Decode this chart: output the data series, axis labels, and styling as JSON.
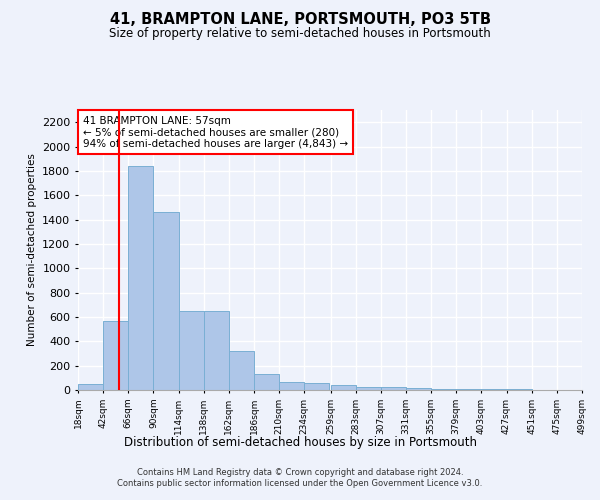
{
  "title": "41, BRAMPTON LANE, PORTSMOUTH, PO3 5TB",
  "subtitle": "Size of property relative to semi-detached houses in Portsmouth",
  "xlabel": "Distribution of semi-detached houses by size in Portsmouth",
  "ylabel": "Number of semi-detached properties",
  "footer_line1": "Contains HM Land Registry data © Crown copyright and database right 2024.",
  "footer_line2": "Contains public sector information licensed under the Open Government Licence v3.0.",
  "annotation_title": "41 BRAMPTON LANE: 57sqm",
  "annotation_line2": "← 5% of semi-detached houses are smaller (280)",
  "annotation_line3": "94% of semi-detached houses are larger (4,843) →",
  "bar_color": "#aec6e8",
  "bar_edge_color": "#7aafd4",
  "red_line_x": 57,
  "bins_left": [
    18,
    42,
    66,
    90,
    114,
    138,
    162,
    186,
    210,
    234,
    259,
    283,
    307,
    331,
    355,
    379,
    403,
    427,
    451,
    475
  ],
  "bin_width": 24,
  "bar_heights": [
    50,
    570,
    1840,
    1460,
    650,
    650,
    320,
    130,
    65,
    55,
    40,
    25,
    25,
    15,
    10,
    10,
    5,
    5,
    2,
    2
  ],
  "ylim": [
    0,
    2300
  ],
  "yticks": [
    0,
    200,
    400,
    600,
    800,
    1000,
    1200,
    1400,
    1600,
    1800,
    2000,
    2200
  ],
  "xtick_labels": [
    "18sqm",
    "42sqm",
    "66sqm",
    "90sqm",
    "114sqm",
    "138sqm",
    "162sqm",
    "186sqm",
    "210sqm",
    "234sqm",
    "259sqm",
    "283sqm",
    "307sqm",
    "331sqm",
    "355sqm",
    "379sqm",
    "403sqm",
    "427sqm",
    "451sqm",
    "475sqm",
    "499sqm"
  ],
  "background_color": "#eef2fb",
  "grid_color": "#ffffff"
}
